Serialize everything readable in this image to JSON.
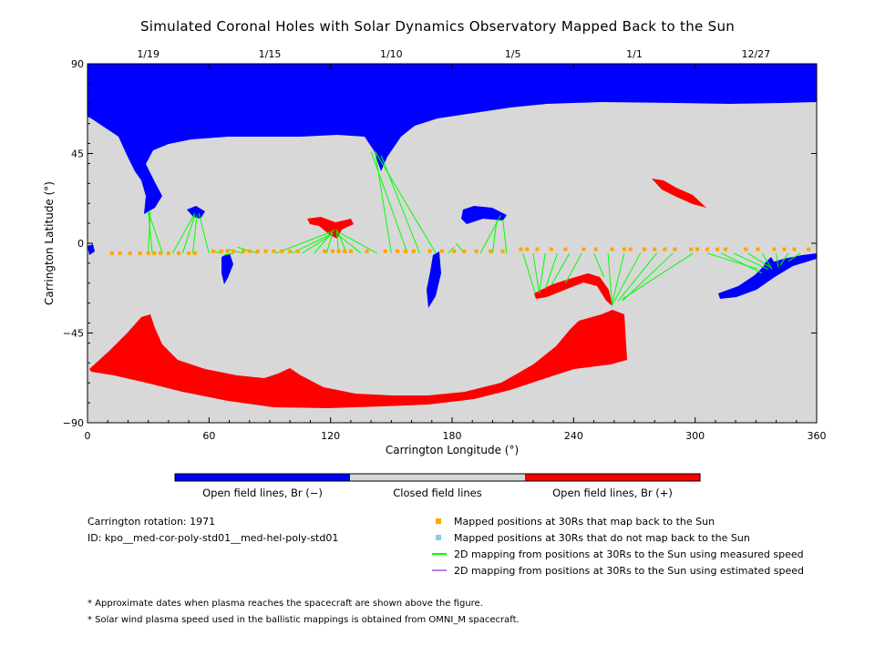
{
  "chart_data": {
    "type": "map",
    "title": "Simulated Coronal Holes with Solar Dynamics Observatory Mapped Back to the Sun",
    "xlabel": "Carrington Longitude (°)",
    "ylabel": "Carrington Latitude (°)",
    "xlim": [
      0,
      360
    ],
    "ylim": [
      -90,
      90
    ],
    "x_ticks": [
      0,
      60,
      120,
      180,
      240,
      300,
      360
    ],
    "y_ticks": [
      -90,
      -45,
      0,
      45,
      90
    ],
    "top_date_ticks": [
      {
        "lon": 30,
        "label": "1/19"
      },
      {
        "lon": 90,
        "label": "1/15"
      },
      {
        "lon": 150,
        "label": "1/10"
      },
      {
        "lon": 210,
        "label": "1/5"
      },
      {
        "lon": 270,
        "label": "1/1"
      },
      {
        "lon": 330,
        "label": "12/27"
      }
    ],
    "colorbar": [
      {
        "label": "Open field lines, Br (−)",
        "color": "#0000ff"
      },
      {
        "label": "Closed field lines",
        "color": "#d8d8d8"
      },
      {
        "label": "Open field lines, Br (+)",
        "color": "#ff0000"
      }
    ],
    "mapping_lines": [
      [
        30,
        -5,
        31,
        16
      ],
      [
        32,
        -5,
        30,
        16
      ],
      [
        37,
        -5,
        30,
        16
      ],
      [
        42,
        -5,
        53,
        15
      ],
      [
        47,
        -5,
        53,
        14
      ],
      [
        52,
        -5,
        54,
        14
      ],
      [
        60,
        -5,
        55,
        15
      ],
      [
        66,
        -5,
        62,
        -4
      ],
      [
        69,
        -5,
        70,
        -3
      ],
      [
        72,
        -5,
        67,
        -6
      ],
      [
        77,
        -5,
        69,
        -3
      ],
      [
        84,
        -5,
        74,
        -2
      ],
      [
        93,
        -5,
        121,
        6
      ],
      [
        101,
        -5,
        121,
        5
      ],
      [
        106,
        -5,
        120,
        4
      ],
      [
        112,
        -5,
        122,
        7
      ],
      [
        118,
        -5,
        121,
        5
      ],
      [
        124,
        -5,
        123,
        6
      ],
      [
        128,
        -5,
        123,
        7
      ],
      [
        135,
        -5,
        124,
        4
      ],
      [
        143,
        -5,
        125,
        5
      ],
      [
        150,
        -5,
        142,
        46
      ],
      [
        158,
        -5,
        140,
        46
      ],
      [
        164,
        -5,
        145,
        44
      ],
      [
        172,
        -5,
        142,
        46
      ],
      [
        178,
        -5,
        181,
        -2
      ],
      [
        186,
        -5,
        182,
        0
      ],
      [
        194,
        -5,
        204,
        14
      ],
      [
        200,
        -5,
        202,
        11
      ],
      [
        207,
        -5,
        205,
        12
      ],
      [
        215,
        -5,
        221,
        -25
      ],
      [
        220,
        -5,
        223,
        -25
      ],
      [
        226,
        -5,
        223,
        -25
      ],
      [
        232,
        -5,
        226,
        -23
      ],
      [
        238,
        -5,
        229,
        -21
      ],
      [
        244,
        -5,
        236,
        -20
      ],
      [
        250,
        -5,
        255,
        -17
      ],
      [
        257,
        -5,
        259,
        -31
      ],
      [
        265,
        -5,
        259,
        -30
      ],
      [
        273,
        -5,
        259,
        -31
      ],
      [
        281,
        -5,
        262,
        -29
      ],
      [
        289,
        -5,
        264,
        -29
      ],
      [
        299,
        -5,
        264,
        -28
      ],
      [
        306,
        -5,
        331,
        -13
      ],
      [
        313,
        -5,
        333,
        -15
      ],
      [
        319,
        -5,
        336,
        -13
      ],
      [
        326,
        -5,
        337,
        -12
      ],
      [
        333,
        -5,
        338,
        -13
      ],
      [
        340,
        -5,
        341,
        -12
      ],
      [
        346,
        -5,
        342,
        -11
      ],
      [
        352,
        -5,
        346,
        -9
      ]
    ],
    "mapped_points": [
      [
        12,
        -5
      ],
      [
        16,
        -5
      ],
      [
        21,
        -5
      ],
      [
        26,
        -5
      ],
      [
        30,
        -5
      ],
      [
        33,
        -5
      ],
      [
        36,
        -5
      ],
      [
        40,
        -5
      ],
      [
        45,
        -5
      ],
      [
        50,
        -5
      ],
      [
        53,
        -5
      ],
      [
        62,
        -4
      ],
      [
        66,
        -4
      ],
      [
        69,
        -4
      ],
      [
        72,
        -4
      ],
      [
        77,
        -4
      ],
      [
        80,
        -4
      ],
      [
        84,
        -4
      ],
      [
        88,
        -4
      ],
      [
        92,
        -4
      ],
      [
        96,
        -4
      ],
      [
        100,
        -4
      ],
      [
        104,
        -4
      ],
      [
        117,
        -4
      ],
      [
        121,
        -4
      ],
      [
        124,
        -4
      ],
      [
        127,
        -4
      ],
      [
        130,
        -4
      ],
      [
        138,
        -4
      ],
      [
        147,
        -4
      ],
      [
        153,
        -4
      ],
      [
        157,
        -4
      ],
      [
        161,
        -4
      ],
      [
        169,
        -4
      ],
      [
        175,
        -4
      ],
      [
        181,
        -4
      ],
      [
        186,
        -4
      ],
      [
        192,
        -4
      ],
      [
        199,
        -4
      ],
      [
        205,
        -4
      ],
      [
        214,
        -3
      ],
      [
        217,
        -3
      ],
      [
        222,
        -3
      ],
      [
        229,
        -3
      ],
      [
        236,
        -3
      ],
      [
        245,
        -3
      ],
      [
        251,
        -3
      ],
      [
        259,
        -3
      ],
      [
        265,
        -3
      ],
      [
        268,
        -3
      ],
      [
        275,
        -3
      ],
      [
        280,
        -3
      ],
      [
        285,
        -3
      ],
      [
        290,
        -3
      ],
      [
        298,
        -3
      ],
      [
        301,
        -3
      ],
      [
        306,
        -3
      ],
      [
        311,
        -3
      ],
      [
        315,
        -3
      ],
      [
        325,
        -3
      ],
      [
        331,
        -3
      ],
      [
        339,
        -3
      ],
      [
        344,
        -3
      ],
      [
        349,
        -3
      ],
      [
        356,
        -3
      ]
    ],
    "info": {
      "rotation": "Carrington rotation: 1971",
      "id": "ID: kpo__med-cor-poly-std01__med-hel-poly-std01"
    },
    "legend": [
      {
        "label": "Mapped positions at 30Rs that map back to the Sun",
        "color": "#ffa500",
        "kind": "square"
      },
      {
        "label": "Mapped positions at 30Rs that do not map back to the Sun",
        "color": "#87ceeb",
        "kind": "square"
      },
      {
        "label": "2D mapping from positions at 30Rs to the Sun using measured speed",
        "color": "#00ff00",
        "kind": "line"
      },
      {
        "label": "2D mapping from positions at 30Rs to the Sun using estimated speed",
        "color": "#b580e6",
        "kind": "line"
      }
    ],
    "notes": [
      "* Approximate dates when plasma reaches the spacecraft are shown above the figure.",
      "* Solar wind plasma speed used in the ballistic mappings is obtained from OMNI_M spacecraft."
    ]
  }
}
